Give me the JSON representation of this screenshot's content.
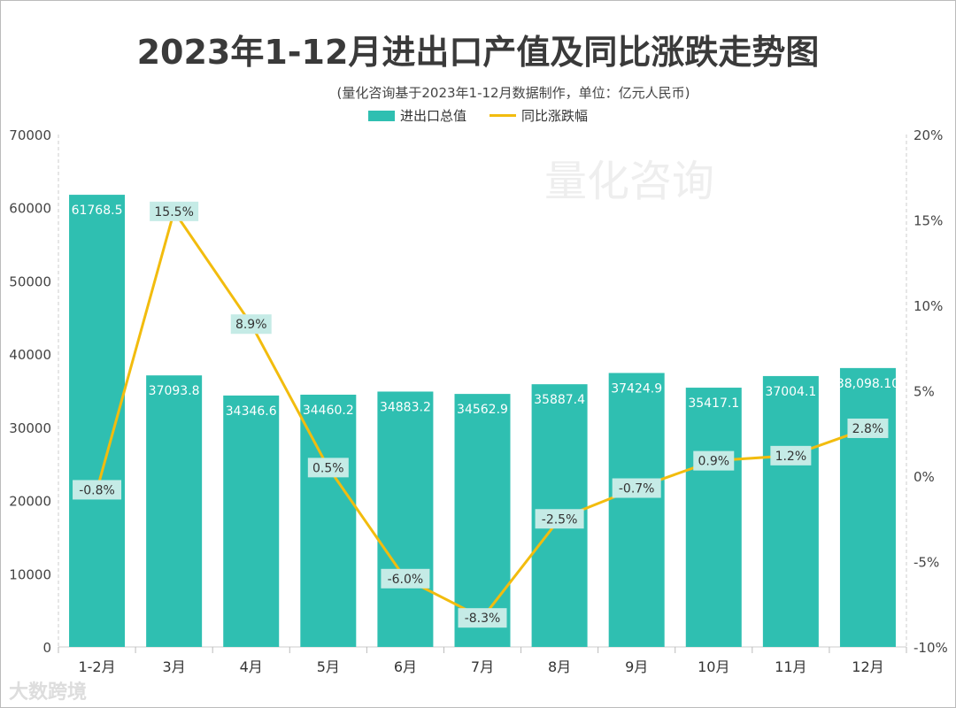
{
  "chart_data": {
    "type": "bar",
    "title": "2023年1-12月进出口产值及同比涨跌走势图",
    "subtitle": "(量化咨询基于2023年1-12月数据制作，单位：亿元人民币)",
    "categories": [
      "1-2月",
      "3月",
      "4月",
      "5月",
      "6月",
      "7月",
      "8月",
      "9月",
      "10月",
      "11月",
      "12月"
    ],
    "series": [
      {
        "name": "进出口总值",
        "type": "bar",
        "axis": "left",
        "color": "#2fbfb1",
        "values": [
          61768.5,
          37093.8,
          34346.6,
          34460.2,
          34883.2,
          34562.9,
          35887.4,
          37424.9,
          35417.1,
          37004.1,
          38098.1
        ],
        "labels": [
          "61768.5",
          "37093.8",
          "34346.6",
          "34460.2",
          "34883.2",
          "34562.9",
          "35887.4",
          "37424.9",
          "35417.1",
          "37004.1",
          "38,098.10"
        ]
      },
      {
        "name": "同比涨跌幅",
        "type": "line",
        "axis": "right",
        "color": "#f2bc0e",
        "values": [
          -0.8,
          15.5,
          8.9,
          0.5,
          -6.0,
          -8.3,
          -2.5,
          -0.7,
          0.9,
          1.2,
          2.8
        ],
        "labels": [
          "-0.8%",
          "15.5%",
          "8.9%",
          "0.5%",
          "-6.0%",
          "-8.3%",
          "-2.5%",
          "-0.7%",
          "0.9%",
          "1.2%",
          "2.8%"
        ]
      }
    ],
    "y_left": {
      "range": [
        0,
        70000
      ],
      "ticks": [
        "0",
        "10000",
        "20000",
        "30000",
        "40000",
        "50000",
        "60000",
        "70000"
      ]
    },
    "y_right": {
      "range": [
        -10,
        20
      ],
      "ticks": [
        "-10%",
        "-5%",
        "0%",
        "5%",
        "10%",
        "15%",
        "20%"
      ]
    },
    "legend_placement": "top-center",
    "grid": false
  },
  "watermarks": {
    "center": "量化咨询",
    "corner": "大数跨境"
  }
}
